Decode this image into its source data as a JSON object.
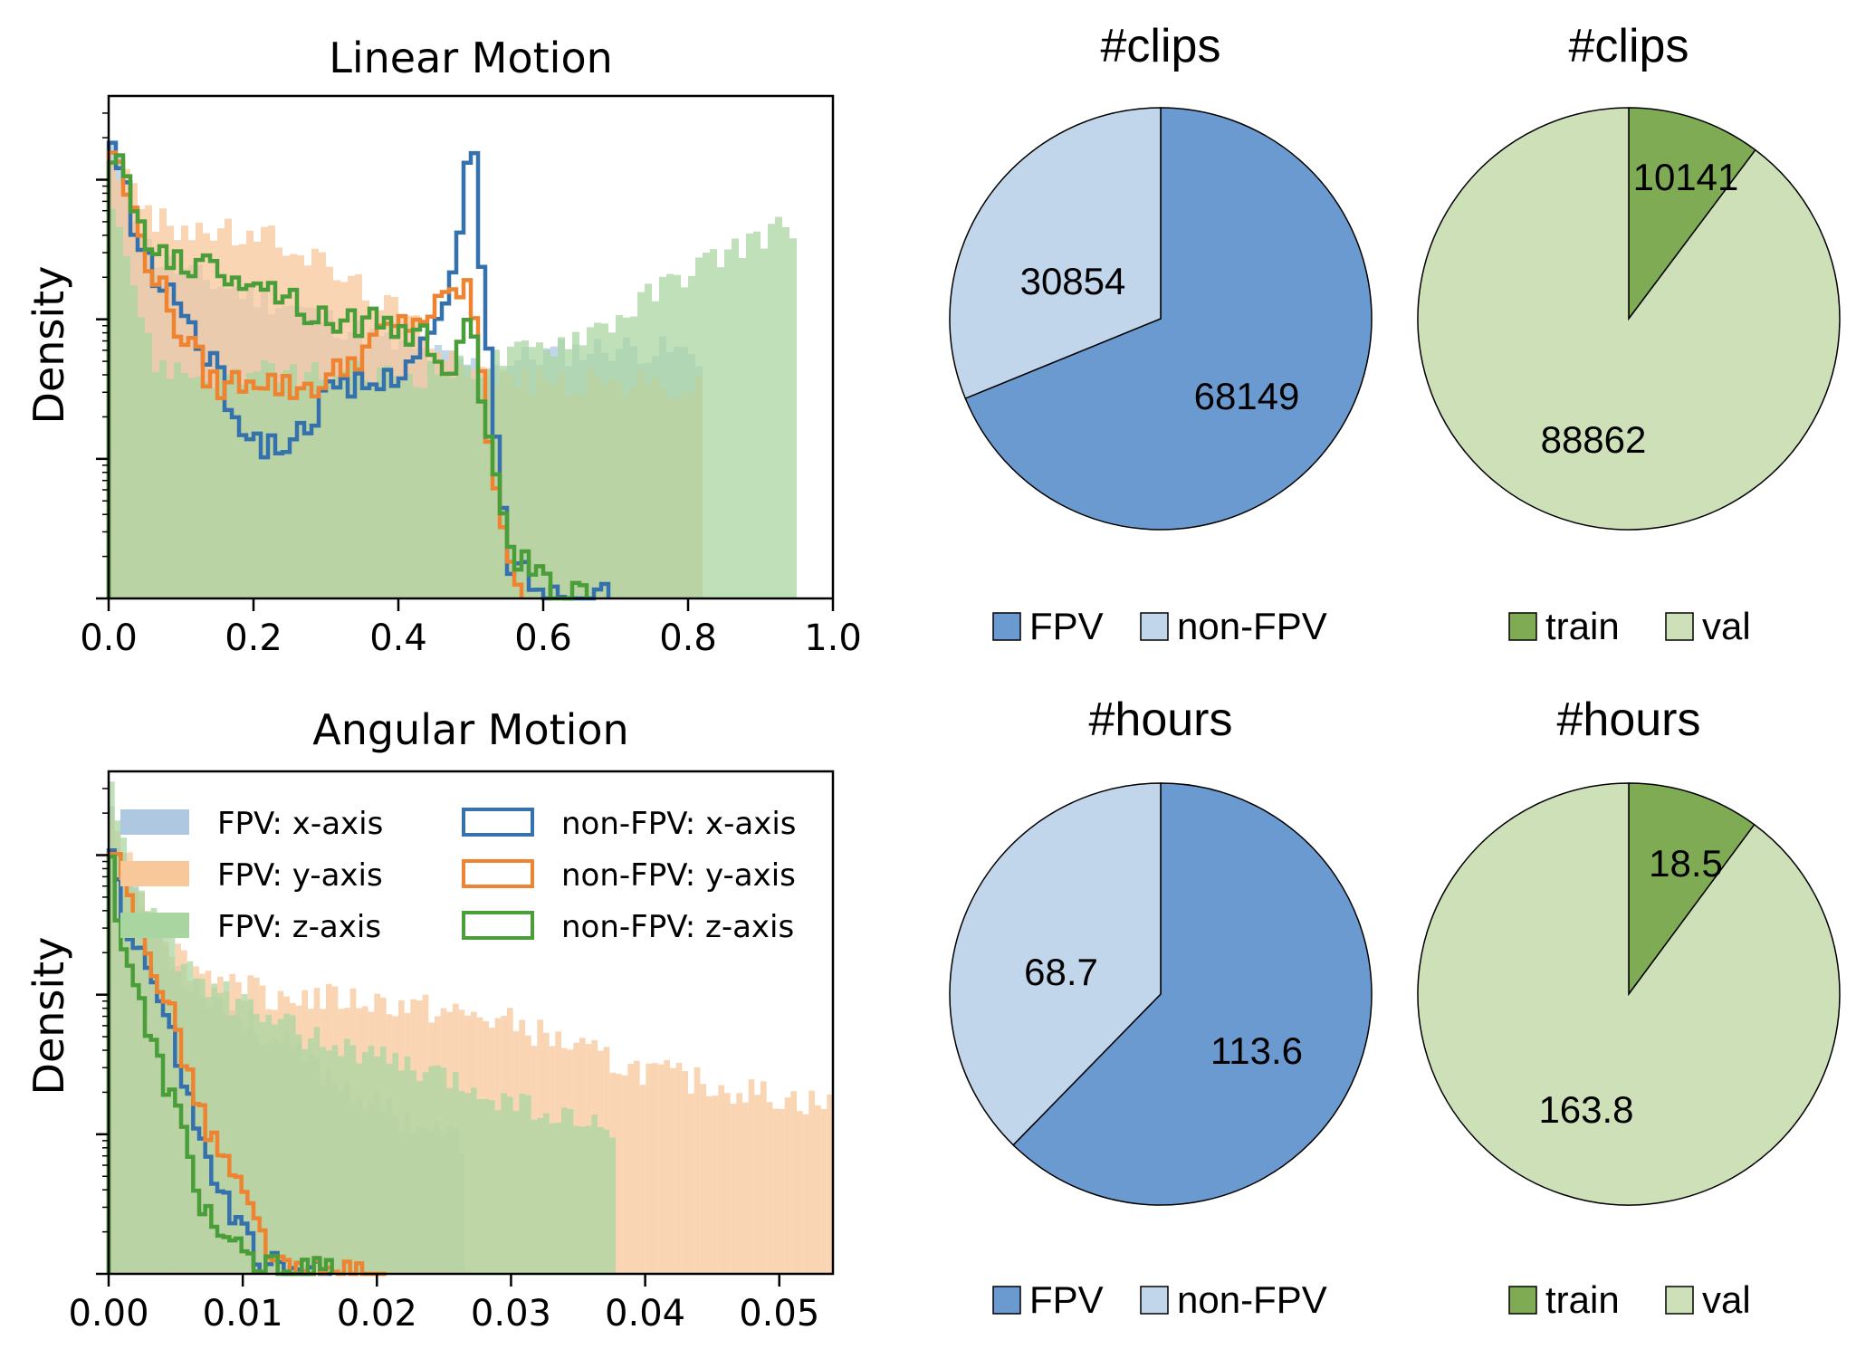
{
  "colors": {
    "fpv_x": "#aec8e2",
    "fpv_y": "#f8c79a",
    "fpv_z": "#a9d6a0",
    "nonfpv_x": "#3571ad",
    "nonfpv_y": "#ee8431",
    "nonfpv_z": "#4a9e3a",
    "pie_fpv": "#6a9acf",
    "pie_nonfpv": "#c2d6eb",
    "pie_train": "#7fab55",
    "pie_val": "#cde0b8"
  },
  "chart_data": [
    {
      "type": "histogram",
      "title": "Linear Motion",
      "ylabel": "Density",
      "xlim": [
        0.0,
        1.0
      ],
      "xticks": [
        "0.0",
        "0.2",
        "0.4",
        "0.6",
        "0.8",
        "1.0"
      ],
      "yscale": "log",
      "series": [
        {
          "name": "FPV: x-axis",
          "style": "filled",
          "extent": [
            0.0,
            0.82
          ],
          "profile_x": [
            0.0,
            0.02,
            0.06,
            0.12,
            0.25,
            0.4,
            0.48,
            0.52,
            0.6,
            0.7,
            0.82
          ],
          "profile_y": [
            3.3,
            3.0,
            2.45,
            2.3,
            2.1,
            1.8,
            1.7,
            1.65,
            1.75,
            1.8,
            1.75
          ]
        },
        {
          "name": "FPV: y-axis",
          "style": "filled",
          "extent": [
            0.0,
            0.82
          ],
          "profile_x": [
            0.0,
            0.02,
            0.06,
            0.12,
            0.25,
            0.4,
            0.52,
            0.6,
            0.7,
            0.82
          ],
          "profile_y": [
            3.2,
            3.05,
            2.7,
            2.65,
            2.55,
            2.05,
            1.6,
            1.55,
            1.55,
            1.5
          ]
        },
        {
          "name": "FPV: z-axis",
          "style": "filled",
          "extent": [
            0.0,
            0.95
          ],
          "profile_x": [
            0.0,
            0.02,
            0.06,
            0.12,
            0.25,
            0.4,
            0.5,
            0.6,
            0.7,
            0.8,
            0.9,
            0.95
          ],
          "profile_y": [
            3.0,
            2.6,
            1.7,
            1.6,
            1.6,
            1.6,
            1.65,
            1.8,
            2.0,
            2.35,
            2.6,
            2.7
          ]
        },
        {
          "name": "non-FPV: x-axis",
          "style": "step",
          "extent": [
            0.0,
            0.69
          ],
          "profile_x": [
            0.0,
            0.02,
            0.05,
            0.1,
            0.15,
            0.2,
            0.25,
            0.3,
            0.38,
            0.45,
            0.48,
            0.5,
            0.52,
            0.55,
            0.6,
            0.65,
            0.69
          ],
          "profile_y": [
            3.3,
            3.0,
            2.4,
            2.1,
            1.6,
            1.1,
            1.1,
            1.45,
            1.55,
            1.9,
            2.3,
            3.5,
            2.0,
            0.3,
            0.05,
            0.0,
            0.1
          ]
        },
        {
          "name": "non-FPV: y-axis",
          "style": "step",
          "extent": [
            0.0,
            0.57
          ],
          "profile_x": [
            0.0,
            0.02,
            0.05,
            0.1,
            0.15,
            0.2,
            0.25,
            0.3,
            0.38,
            0.45,
            0.48,
            0.5,
            0.52,
            0.55,
            0.57
          ],
          "profile_y": [
            3.3,
            3.0,
            2.5,
            1.9,
            1.5,
            1.6,
            1.5,
            1.55,
            1.9,
            2.05,
            2.2,
            2.25,
            1.3,
            0.4,
            0.05
          ]
        },
        {
          "name": "non-FPV: z-axis",
          "style": "step",
          "extent": [
            0.0,
            0.66
          ],
          "profile_x": [
            0.0,
            0.02,
            0.05,
            0.1,
            0.2,
            0.3,
            0.4,
            0.45,
            0.48,
            0.5,
            0.52,
            0.55,
            0.6,
            0.66
          ],
          "profile_y": [
            3.3,
            3.0,
            2.6,
            2.4,
            2.3,
            2.0,
            1.95,
            1.8,
            1.6,
            2.2,
            1.2,
            0.4,
            0.1,
            0.0
          ]
        }
      ]
    },
    {
      "type": "histogram",
      "title": "Angular Motion",
      "ylabel": "Density",
      "xlim": [
        0.0,
        0.054
      ],
      "xticks": [
        "0.00",
        "0.01",
        "0.02",
        "0.03",
        "0.04",
        "0.05"
      ],
      "yscale": "log",
      "legend": "top-right",
      "series": [
        {
          "name": "FPV: x-axis",
          "style": "filled",
          "extent": [
            0.0,
            0.0265
          ],
          "profile_x": [
            0.0,
            0.001,
            0.003,
            0.006,
            0.012,
            0.02,
            0.0265
          ],
          "profile_y": [
            3.5,
            3.0,
            2.5,
            2.1,
            1.7,
            1.2,
            0.95
          ]
        },
        {
          "name": "FPV: y-axis",
          "style": "filled",
          "extent": [
            0.0,
            0.054
          ],
          "profile_x": [
            0.0,
            0.001,
            0.003,
            0.006,
            0.012,
            0.02,
            0.03,
            0.038,
            0.045,
            0.054
          ],
          "profile_y": [
            3.5,
            3.1,
            2.6,
            2.2,
            2.0,
            1.95,
            1.8,
            1.5,
            1.35,
            1.2
          ]
        },
        {
          "name": "FPV: z-axis",
          "style": "filled",
          "extent": [
            0.0,
            0.038
          ],
          "profile_x": [
            0.0,
            0.001,
            0.003,
            0.006,
            0.012,
            0.02,
            0.03,
            0.038
          ],
          "profile_y": [
            3.6,
            3.1,
            2.6,
            2.15,
            1.8,
            1.55,
            1.25,
            1.0
          ]
        },
        {
          "name": "non-FPV: x-axis",
          "style": "step",
          "extent": [
            0.0,
            0.0165
          ],
          "profile_x": [
            0.0,
            0.001,
            0.003,
            0.005,
            0.007,
            0.009,
            0.011,
            0.013,
            0.0165
          ],
          "profile_y": [
            3.2,
            2.6,
            2.2,
            1.6,
            0.9,
            0.45,
            0.15,
            0.0,
            0.0
          ]
        },
        {
          "name": "non-FPV: y-axis",
          "style": "step",
          "extent": [
            0.0,
            0.0205
          ],
          "profile_x": [
            0.0,
            0.001,
            0.003,
            0.005,
            0.007,
            0.009,
            0.011,
            0.013,
            0.0205
          ],
          "profile_y": [
            3.2,
            2.8,
            2.3,
            1.8,
            1.1,
            0.75,
            0.35,
            0.0,
            0.0
          ]
        },
        {
          "name": "non-FPV: z-axis",
          "style": "step",
          "extent": [
            0.0,
            0.0165
          ],
          "profile_x": [
            0.0,
            0.001,
            0.002,
            0.003,
            0.005,
            0.007,
            0.009,
            0.011,
            0.0165
          ],
          "profile_y": [
            3.1,
            2.4,
            2.1,
            1.7,
            1.2,
            0.5,
            0.2,
            0.05,
            0.0
          ]
        }
      ]
    },
    {
      "type": "pie",
      "title": "#clips",
      "slices": [
        {
          "label": "FPV",
          "value": 68149
        },
        {
          "label": "non-FPV",
          "value": 30854
        }
      ],
      "value_labels": [
        "68149",
        "30854"
      ],
      "legend": "bottom"
    },
    {
      "type": "pie",
      "title": "#clips",
      "slices": [
        {
          "label": "train",
          "value": 10141
        },
        {
          "label": "val",
          "value": 88862
        }
      ],
      "value_labels": [
        "10141",
        "88862"
      ],
      "legend": "bottom"
    },
    {
      "type": "pie",
      "title": "#hours",
      "slices": [
        {
          "label": "FPV",
          "value": 113.6
        },
        {
          "label": "non-FPV",
          "value": 68.7
        }
      ],
      "value_labels": [
        "113.6",
        "68.7"
      ],
      "legend": "bottom"
    },
    {
      "type": "pie",
      "title": "#hours",
      "slices": [
        {
          "label": "train",
          "value": 18.5
        },
        {
          "label": "val",
          "value": 163.8
        }
      ],
      "value_labels": [
        "18.5",
        "163.8"
      ],
      "legend": "bottom"
    }
  ]
}
